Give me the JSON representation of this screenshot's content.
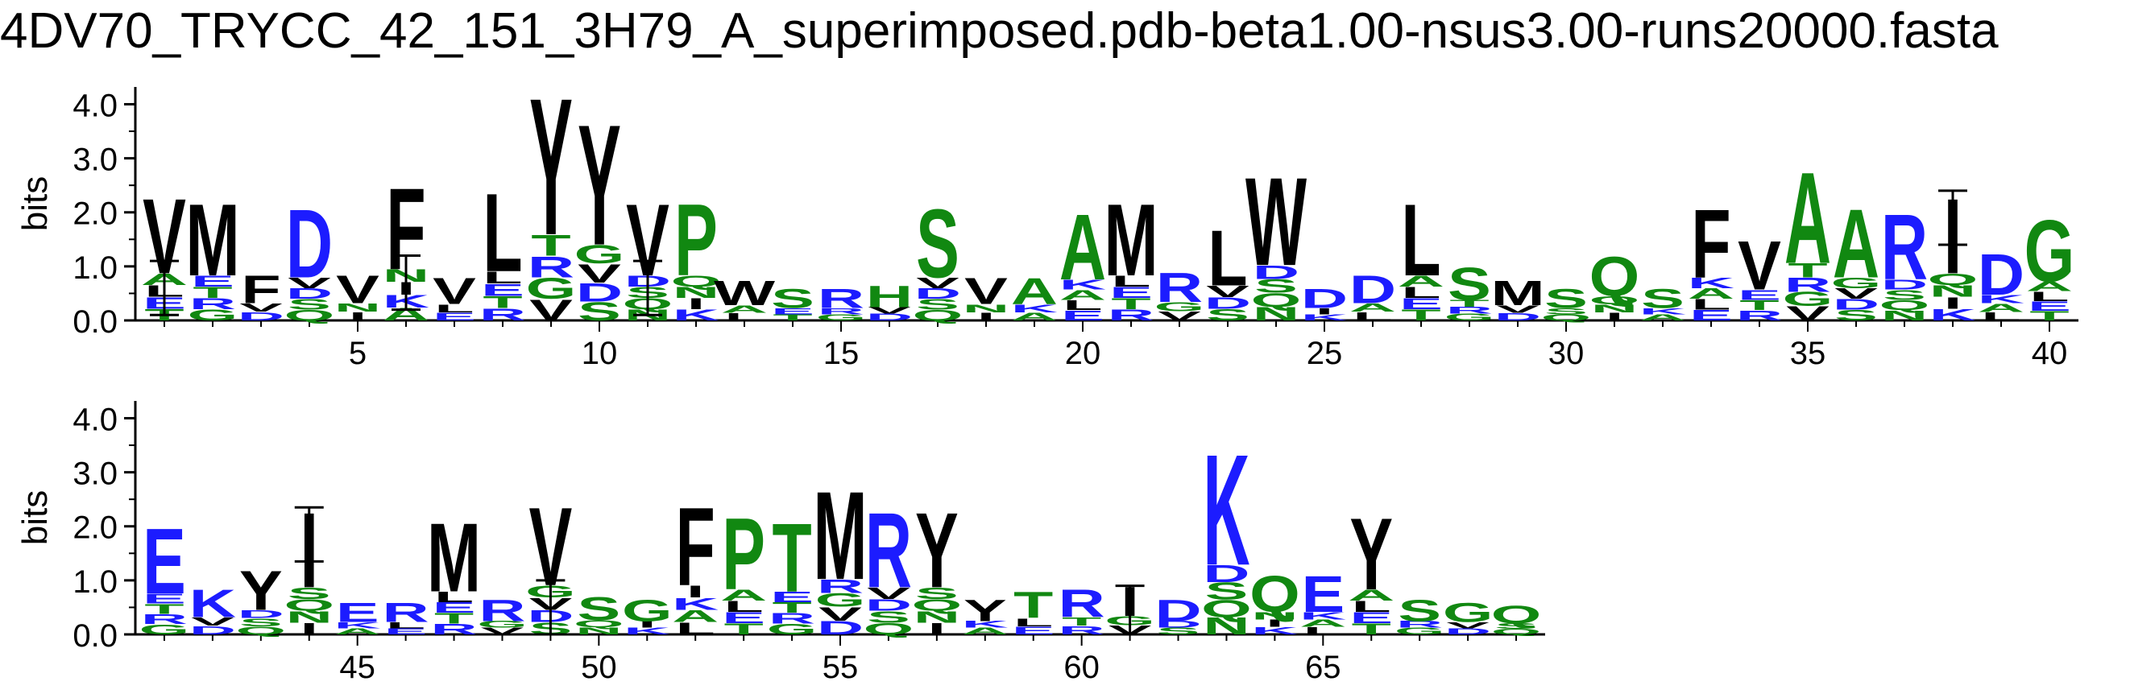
{
  "title": "4DV70_TRYCC_42_151_3H79_A_superimposed.pdb-beta1.00-nsus3.00-runs20000.fasta",
  "colors": {
    "hydrophobic": "#000000",
    "polar": "#118811",
    "basic": "#1c1cff",
    "acidic": "#1c1cff"
  },
  "chart_data": [
    {
      "type": "sequence-logo",
      "ylabel": "bits",
      "ylim": [
        0,
        4.32
      ],
      "yticks": [
        "0.0",
        "1.0",
        "2.0",
        "3.0",
        "4.0"
      ],
      "xlim": [
        0.4,
        40.6
      ],
      "xticks": [
        "5",
        "10",
        "15",
        "20",
        "25",
        "30",
        "35",
        "40"
      ],
      "positions": [
        {
          "pos": 1,
          "main": "V",
          "h": 2.3,
          "err": 1.1
        },
        {
          "pos": 2,
          "main": "M",
          "h": 2.2
        },
        {
          "pos": 3,
          "main": "F",
          "h": 0.85
        },
        {
          "pos": 4,
          "main": "D",
          "h": 2.1
        },
        {
          "pos": 5,
          "main": "V",
          "h": 0.85
        },
        {
          "pos": 6,
          "main": "F",
          "h": 2.5,
          "err": 1.2
        },
        {
          "pos": 7,
          "main": "V",
          "h": 0.8
        },
        {
          "pos": 8,
          "main": "L",
          "h": 2.4
        },
        {
          "pos": 9,
          "main": "Y",
          "h": 4.2
        },
        {
          "pos": 10,
          "main": "Y",
          "h": 3.7
        },
        {
          "pos": 11,
          "main": "V",
          "h": 2.2,
          "err": 1.1
        },
        {
          "pos": 12,
          "main": "P",
          "h": 2.2
        },
        {
          "pos": 13,
          "main": "W",
          "h": 0.75
        },
        {
          "pos": 14,
          "main": "S",
          "h": 0.6
        },
        {
          "pos": 15,
          "main": "R",
          "h": 0.6
        },
        {
          "pos": 16,
          "main": "H",
          "h": 0.65
        },
        {
          "pos": 17,
          "main": "S",
          "h": 2.1
        },
        {
          "pos": 18,
          "main": "V",
          "h": 0.8
        },
        {
          "pos": 19,
          "main": "A",
          "h": 0.8
        },
        {
          "pos": 20,
          "main": "A",
          "h": 2.0
        },
        {
          "pos": 21,
          "main": "M",
          "h": 2.2
        },
        {
          "pos": 22,
          "main": "R",
          "h": 0.9
        },
        {
          "pos": 23,
          "main": "L",
          "h": 1.7
        },
        {
          "pos": 24,
          "main": "W",
          "h": 2.7
        },
        {
          "pos": 25,
          "main": "D",
          "h": 0.6
        },
        {
          "pos": 26,
          "main": "D",
          "h": 0.85
        },
        {
          "pos": 27,
          "main": "L",
          "h": 2.2
        },
        {
          "pos": 28,
          "main": "S",
          "h": 1.0
        },
        {
          "pos": 29,
          "main": "M",
          "h": 0.75
        },
        {
          "pos": 30,
          "main": "S",
          "h": 0.6
        },
        {
          "pos": 31,
          "main": "Q",
          "h": 1.2
        },
        {
          "pos": 32,
          "main": "S",
          "h": 0.6
        },
        {
          "pos": 33,
          "main": "F",
          "h": 2.1
        },
        {
          "pos": 34,
          "main": "V",
          "h": 1.5
        },
        {
          "pos": 35,
          "main": "A",
          "h": 2.8
        },
        {
          "pos": 36,
          "main": "A",
          "h": 2.1
        },
        {
          "pos": 37,
          "main": "R",
          "h": 2.0
        },
        {
          "pos": 38,
          "main": "I",
          "h": 2.3,
          "err": 2.4
        },
        {
          "pos": 39,
          "main": "D",
          "h": 1.25
        },
        {
          "pos": 40,
          "main": "G",
          "h": 1.9
        }
      ]
    },
    {
      "type": "sequence-logo",
      "ylabel": "bits",
      "ylim": [
        0,
        4.32
      ],
      "yticks": [
        "0.0",
        "1.0",
        "2.0",
        "3.0",
        "4.0"
      ],
      "xlim": [
        40.4,
        69.6
      ],
      "xticks": [
        "45",
        "50",
        "55",
        "60",
        "65"
      ],
      "positions": [
        {
          "pos": 41,
          "main": "E",
          "h": 2.0
        },
        {
          "pos": 42,
          "main": "K",
          "h": 0.85
        },
        {
          "pos": 43,
          "main": "Y",
          "h": 1.2
        },
        {
          "pos": 44,
          "main": "I",
          "h": 2.3,
          "err": 2.35
        },
        {
          "pos": 45,
          "main": "E",
          "h": 0.6
        },
        {
          "pos": 46,
          "main": "R",
          "h": 0.6
        },
        {
          "pos": 47,
          "main": "M",
          "h": 2.1
        },
        {
          "pos": 48,
          "main": "R",
          "h": 0.65
        },
        {
          "pos": 49,
          "main": "V",
          "h": 2.4,
          "err": 1.0
        },
        {
          "pos": 50,
          "main": "S",
          "h": 0.7
        },
        {
          "pos": 51,
          "main": "G",
          "h": 0.65
        },
        {
          "pos": 52,
          "main": "F",
          "h": 2.4
        },
        {
          "pos": 53,
          "main": "P",
          "h": 2.2
        },
        {
          "pos": 54,
          "main": "T",
          "h": 2.1
        },
        {
          "pos": 55,
          "main": "M",
          "h": 2.7
        },
        {
          "pos": 56,
          "main": "R",
          "h": 2.3
        },
        {
          "pos": 57,
          "main": "Y",
          "h": 2.3
        },
        {
          "pos": 58,
          "main": "Y",
          "h": 0.65
        },
        {
          "pos": 59,
          "main": "T",
          "h": 0.8
        },
        {
          "pos": 60,
          "main": "R",
          "h": 0.85
        },
        {
          "pos": 61,
          "main": "I",
          "h": 0.9,
          "err": 0.9
        },
        {
          "pos": 62,
          "main": "D",
          "h": 0.65
        },
        {
          "pos": 63,
          "main": "K",
          "h": 3.4
        },
        {
          "pos": 64,
          "main": "Q",
          "h": 1.1
        },
        {
          "pos": 65,
          "main": "E",
          "h": 1.1
        },
        {
          "pos": 66,
          "main": "Y",
          "h": 2.2
        },
        {
          "pos": 67,
          "main": "S",
          "h": 0.65
        },
        {
          "pos": 68,
          "main": "G",
          "h": 0.6
        },
        {
          "pos": 69,
          "main": "Q",
          "h": 0.55
        }
      ]
    }
  ]
}
